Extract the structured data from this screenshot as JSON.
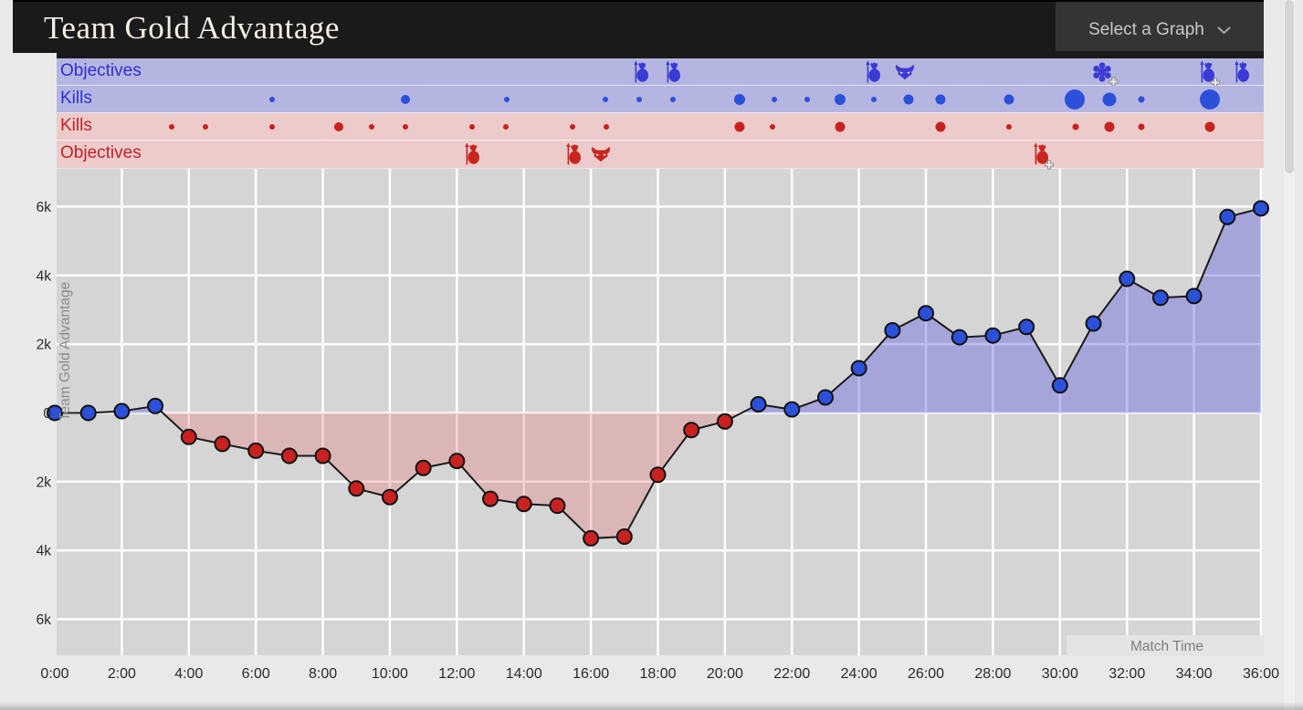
{
  "header": {
    "title": "Team Gold Advantage",
    "select_label": "Select a Graph"
  },
  "tracks": [
    {
      "label": "Objectives",
      "team": "blue",
      "kind": "objectives",
      "events": [
        {
          "time_min": 17.5,
          "icon": "tower"
        },
        {
          "time_min": 18.45,
          "icon": "tower"
        },
        {
          "time_min": 24.42,
          "icon": "tower"
        },
        {
          "time_min": 25.37,
          "icon": "barracks"
        },
        {
          "time_min": 31.26,
          "icon": "gear",
          "stacked": true
        },
        {
          "time_min": 34.39,
          "icon": "tower",
          "stacked": true
        },
        {
          "time_min": 35.43,
          "icon": "tower"
        }
      ]
    },
    {
      "label": "Kills",
      "team": "blue",
      "kind": "kills",
      "events": [
        {
          "time_min": 6.49,
          "r": 3
        },
        {
          "time_min": 10.47,
          "r": 5
        },
        {
          "time_min": 13.49,
          "r": 3
        },
        {
          "time_min": 16.43,
          "r": 3
        },
        {
          "time_min": 17.44,
          "r": 3
        },
        {
          "time_min": 18.45,
          "r": 3
        },
        {
          "time_min": 20.44,
          "r": 6
        },
        {
          "time_min": 21.48,
          "r": 3
        },
        {
          "time_min": 22.46,
          "r": 3
        },
        {
          "time_min": 23.44,
          "r": 6
        },
        {
          "time_min": 24.45,
          "r": 3
        },
        {
          "time_min": 25.48,
          "r": 5.5
        },
        {
          "time_min": 26.44,
          "r": 5.5
        },
        {
          "time_min": 28.48,
          "r": 5.5
        },
        {
          "time_min": 30.44,
          "r": 11
        },
        {
          "time_min": 31.48,
          "r": 7.5
        },
        {
          "time_min": 32.43,
          "r": 3.5
        },
        {
          "time_min": 34.47,
          "r": 11
        }
      ]
    },
    {
      "label": "Kills",
      "team": "red",
      "kind": "kills",
      "events": [
        {
          "time_min": 3.49,
          "r": 3
        },
        {
          "time_min": 4.5,
          "r": 3
        },
        {
          "time_min": 6.49,
          "r": 3
        },
        {
          "time_min": 8.48,
          "r": 5
        },
        {
          "time_min": 9.46,
          "r": 3
        },
        {
          "time_min": 10.47,
          "r": 3
        },
        {
          "time_min": 12.45,
          "r": 3
        },
        {
          "time_min": 13.46,
          "r": 3
        },
        {
          "time_min": 15.45,
          "r": 3
        },
        {
          "time_min": 16.46,
          "r": 3
        },
        {
          "time_min": 20.44,
          "r": 5.5
        },
        {
          "time_min": 21.42,
          "r": 3
        },
        {
          "time_min": 23.44,
          "r": 5.5
        },
        {
          "time_min": 26.44,
          "r": 5.5
        },
        {
          "time_min": 28.48,
          "r": 3
        },
        {
          "time_min": 30.47,
          "r": 3.5
        },
        {
          "time_min": 31.48,
          "r": 5.5
        },
        {
          "time_min": 32.43,
          "r": 3.5
        },
        {
          "time_min": 34.47,
          "r": 5.5
        }
      ]
    },
    {
      "label": "Objectives",
      "team": "red",
      "kind": "objectives",
      "events": [
        {
          "time_min": 12.45,
          "icon": "tower"
        },
        {
          "time_min": 15.48,
          "icon": "tower"
        },
        {
          "time_min": 16.3,
          "icon": "barracks"
        },
        {
          "time_min": 29.43,
          "icon": "tower",
          "stacked": true
        }
      ]
    }
  ],
  "chart_data": {
    "type": "area",
    "title": "Team Gold Advantage",
    "xlabel": "Match Time",
    "ylabel": "Team Gold Advantage",
    "x_minutes": [
      0,
      1,
      2,
      3,
      4,
      5,
      6,
      7,
      8,
      9,
      10,
      11,
      12,
      13,
      14,
      15,
      16,
      17,
      18,
      19,
      20,
      21,
      22,
      23,
      24,
      25,
      26,
      27,
      28,
      29,
      30,
      31,
      32,
      33,
      34,
      35,
      36
    ],
    "gold_advantage": [
      0,
      0,
      50,
      200,
      -700,
      -900,
      -1100,
      -1250,
      -1250,
      -2200,
      -2450,
      -1600,
      -1400,
      -2500,
      -2650,
      -2700,
      -3650,
      -3600,
      -1800,
      -500,
      -250,
      250,
      100,
      450,
      1300,
      2400,
      2900,
      2200,
      2250,
      2500,
      800,
      2600,
      3900,
      3350,
      3400,
      5700,
      5950
    ],
    "x_tick_labels": [
      "0:00",
      "2:00",
      "4:00",
      "6:00",
      "8:00",
      "10:00",
      "12:00",
      "14:00",
      "16:00",
      "18:00",
      "20:00",
      "22:00",
      "24:00",
      "26:00",
      "28:00",
      "30:00",
      "32:00",
      "34:00",
      "36:00"
    ],
    "x_tick_minutes": [
      0,
      2,
      4,
      6,
      8,
      10,
      12,
      14,
      16,
      18,
      20,
      22,
      24,
      26,
      28,
      30,
      32,
      34,
      36
    ],
    "y_tick_labels": [
      "6k",
      "4k",
      "2k",
      "0",
      "2k",
      "4k",
      "6k"
    ],
    "y_tick_values": [
      6000,
      4000,
      2000,
      0,
      -2000,
      -4000,
      -6000
    ],
    "ylim": [
      -7050,
      7100
    ],
    "xlim_minutes": [
      0,
      36
    ],
    "grid": true,
    "point_color_rule": "blue when advantage >= 0, red when below 0"
  },
  "colors": {
    "blue_kill": "#2b50d9",
    "red_kill": "#c9211f",
    "blue_icon": "#3a3ad4",
    "red_icon": "#c9251f",
    "blue_track_bg": "#b5b5e2",
    "red_track_bg": "#edcbcb",
    "blue_label": "#2f2fd3",
    "red_label": "#c32127",
    "blue_area_fill": "rgba(100,100,225,0.42)",
    "red_area_fill": "rgba(230,118,118,0.32)",
    "line": "#1a1a1a",
    "plot_bg": "#d5d5d5",
    "grid_line": "#ffffff",
    "tick_text": "#2a2a2a",
    "muted_text": "#8a8a8a",
    "page_bg": "#e9e9e9",
    "header_bg": "#1a1a1a",
    "select_bg": "#343434",
    "title_text": "#f3f0e7"
  }
}
